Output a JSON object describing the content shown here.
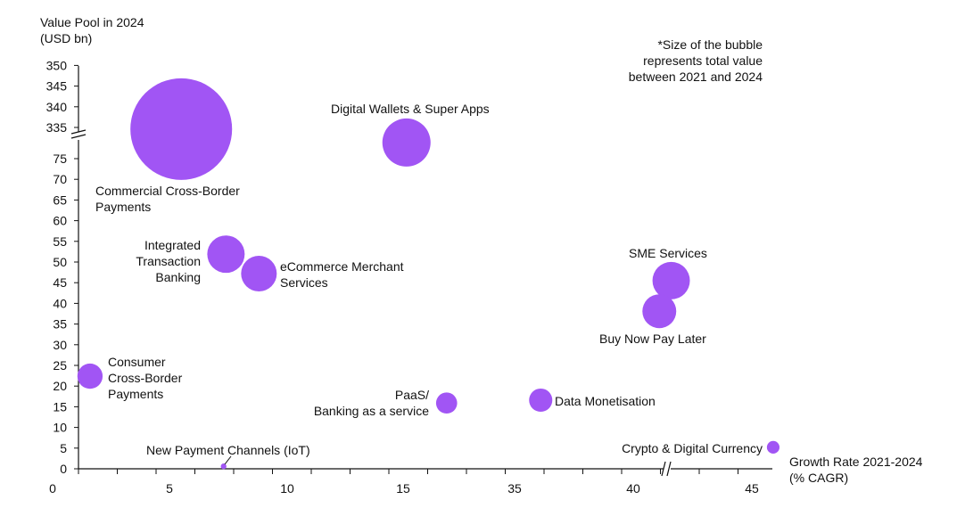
{
  "chart_data": {
    "type": "scatter",
    "subtype": "bubble",
    "ylabel_lines": [
      "Value Pool in 2024",
      "(USD bn)"
    ],
    "xlabel_lines": [
      "Growth Rate 2021-2024",
      "(% CAGR)"
    ],
    "note_lines": [
      "*Size of the bubble",
      "represents total value",
      "between 2021 and 2024"
    ],
    "x_ticks": [
      "0",
      "5",
      "10",
      "15",
      "35",
      "40",
      "45"
    ],
    "x_tick_values": [
      0,
      5,
      10,
      15,
      35,
      40,
      45
    ],
    "x_axis_break": "between 40 and 45",
    "y_ticks_low": [
      "0",
      "5",
      "10",
      "15",
      "20",
      "25",
      "30",
      "35",
      "40",
      "45",
      "50",
      "55",
      "60",
      "65",
      "70",
      "75"
    ],
    "y_ticks_high": [
      "335",
      "340",
      "345",
      "350"
    ],
    "y_axis_break": "between 75 and 335",
    "color": "#a155f4",
    "points": [
      {
        "label_lines": [
          "Commercial Cross-Border",
          "Payments"
        ],
        "x": 5.5,
        "y": 334.6,
        "size": 325
      },
      {
        "label_lines": [
          "Digital Wallets & Super Apps"
        ],
        "x": 15.6,
        "y": 78.9,
        "size": 73
      },
      {
        "label_lines": [
          "Integrated",
          "Transaction",
          "Banking"
        ],
        "x": 7.4,
        "y": 51.9,
        "size": 44
      },
      {
        "label_lines": [
          "eCommerce Merchant",
          "Services"
        ],
        "x": 8.8,
        "y": 47.2,
        "size": 40
      },
      {
        "label_lines": [
          "SME Services"
        ],
        "x": 41.6,
        "y": 45.5,
        "size": 44
      },
      {
        "label_lines": [
          "Buy Now Pay Later"
        ],
        "x": 41.1,
        "y": 38.1,
        "size": 36
      },
      {
        "label_lines": [
          "Consumer",
          "Cross-Border",
          "Payments"
        ],
        "x": 1.6,
        "y": 22.4,
        "size": 20
      },
      {
        "label_lines": [
          "PaaS/",
          "Banking as a service"
        ],
        "x": 22.8,
        "y": 15.9,
        "size": 14
      },
      {
        "label_lines": [
          "Data Monetisation"
        ],
        "x": 36.1,
        "y": 16.6,
        "size": 17
      },
      {
        "label_lines": [
          "Crypto & Digital Currency"
        ],
        "x": 45.9,
        "y": 5.2,
        "size": 5
      },
      {
        "label_lines": [
          "New Payment Channels (IoT)"
        ],
        "x": 7.3,
        "y": 0.6,
        "size": 1
      }
    ]
  }
}
